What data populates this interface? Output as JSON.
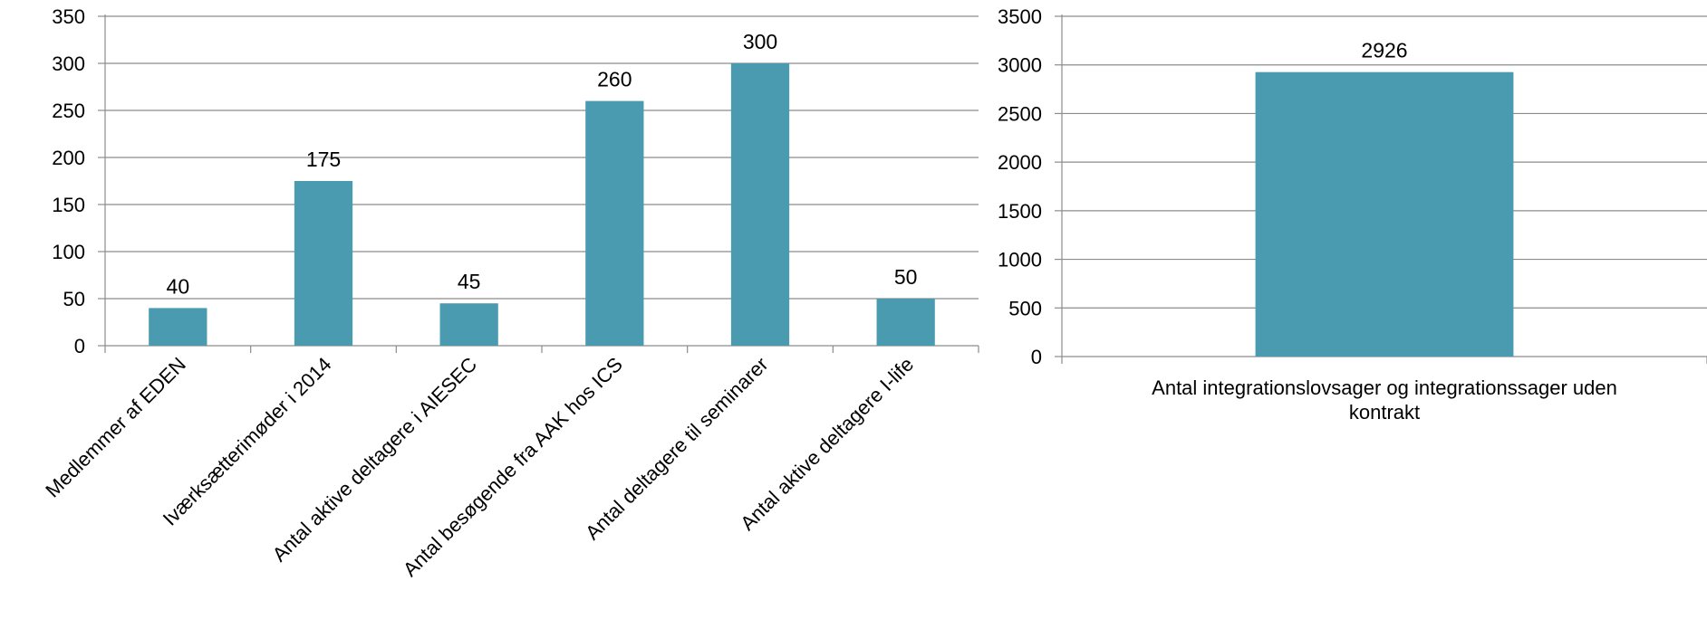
{
  "colors": {
    "bar": "#4a9bb0",
    "grid": "#8c8c8c",
    "axis": "#8c8c8c",
    "text": "#000000"
  },
  "chart_data": [
    {
      "type": "bar",
      "title": "",
      "xlabel": "",
      "ylabel": "",
      "ylim": [
        0,
        350
      ],
      "yticks": [
        "0",
        "50",
        "100",
        "150",
        "200",
        "250",
        "300",
        "350"
      ],
      "grid": true,
      "legend": "none",
      "categories": [
        "Medlemmer af EDEN",
        "Iværksætterimøder i 2014",
        "Antal aktive deltagere i AIESEC",
        "Antal besøgende fra AAK hos ICS",
        "Antal deltagere til seminarer",
        "Antal aktive deltagere I-life"
      ],
      "values": [
        40,
        175,
        45,
        260,
        300,
        50
      ],
      "data_labels": [
        "40",
        "175",
        "45",
        "260",
        "300",
        "50"
      ]
    },
    {
      "type": "bar",
      "title": "",
      "xlabel": "",
      "ylabel": "",
      "ylim": [
        0,
        3500
      ],
      "yticks": [
        "0",
        "500",
        "1000",
        "1500",
        "2000",
        "2500",
        "3000",
        "3500"
      ],
      "grid": true,
      "legend": "none",
      "categories": [
        "Antal integrationslovsager og integrationssager uden kontrakt"
      ],
      "category_lines": [
        [
          "Antal integrationslovsager og integrationssager uden",
          "kontrakt"
        ]
      ],
      "values": [
        2926
      ],
      "data_labels": [
        "2926"
      ]
    }
  ]
}
